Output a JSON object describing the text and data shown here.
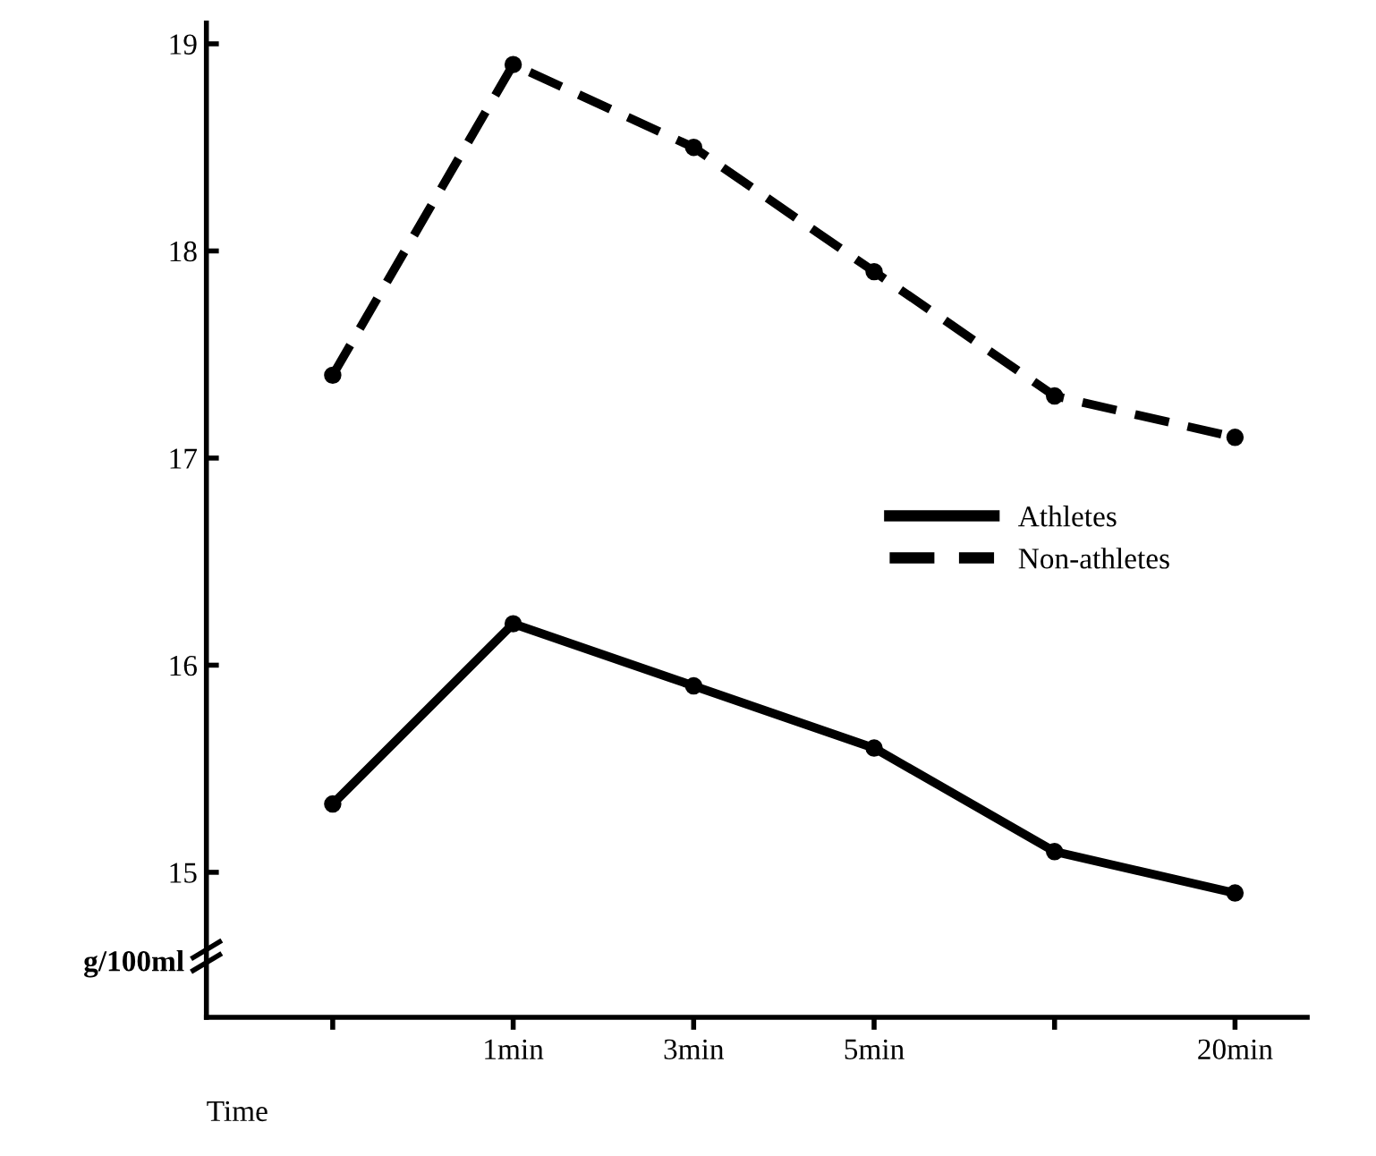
{
  "chart_data": {
    "type": "line",
    "xlabel": "Time",
    "ylabel": "g/100ml",
    "categories": [
      null,
      "1min",
      "3min",
      "5min",
      null,
      "20min"
    ],
    "series": [
      {
        "name": "Athletes",
        "color": "#000000",
        "line_style": "solid",
        "values": [
          15.33,
          16.2,
          15.9,
          15.6,
          15.1,
          14.9
        ]
      },
      {
        "name": "Non-athletes",
        "color": "#000000",
        "line_style": "dashed",
        "values": [
          17.4,
          18.9,
          18.5,
          17.9,
          17.3,
          17.1
        ]
      }
    ],
    "ylim": [
      14.3,
      19.1
    ],
    "yticks": [
      15,
      16,
      17,
      18,
      19
    ],
    "marker": "circle",
    "legend": "center right"
  }
}
